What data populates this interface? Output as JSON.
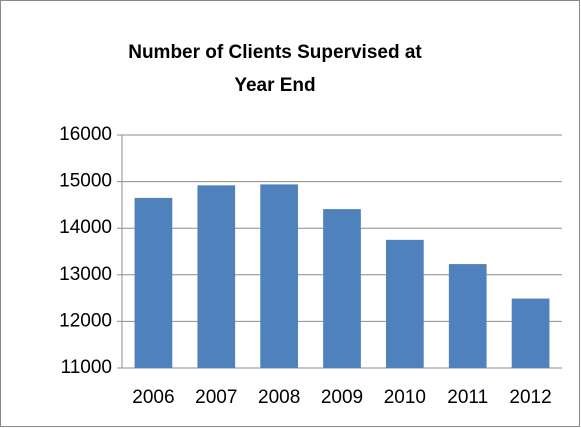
{
  "chart_data": {
    "type": "bar",
    "title": "Number of Clients Supervised at Year End",
    "categories": [
      "2006",
      "2007",
      "2008",
      "2009",
      "2010",
      "2011",
      "2012"
    ],
    "values": [
      14650,
      14920,
      14940,
      14410,
      13750,
      13230,
      12490
    ],
    "color": "#4f81bd",
    "ylim": [
      11000,
      16000
    ],
    "yticks": [
      11000,
      12000,
      13000,
      14000,
      15000,
      16000
    ],
    "grid": true
  }
}
